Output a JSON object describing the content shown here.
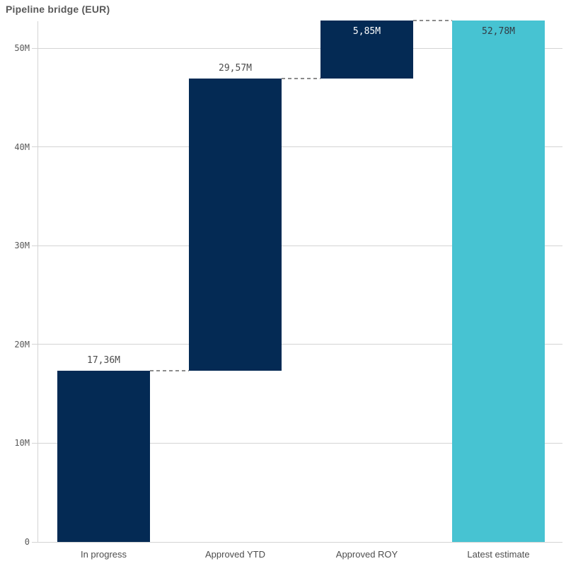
{
  "title": "Pipeline bridge (EUR)",
  "chart_data": {
    "type": "bar",
    "subtype": "waterfall",
    "title": "Pipeline bridge (EUR)",
    "grid": true,
    "legend_position": "none",
    "connector_style": "dashed",
    "categories": [
      "In progress",
      "Approved YTD",
      "Approved ROY",
      "Latest estimate"
    ],
    "bars": [
      {
        "category": "In progress",
        "start": 0,
        "end": 17.36,
        "delta": 17.36,
        "value_label": "17,36M",
        "label_position": "above",
        "color_key": "navy"
      },
      {
        "category": "Approved YTD",
        "start": 17.36,
        "end": 46.93,
        "delta": 29.57,
        "value_label": "29,57M",
        "label_position": "above",
        "color_key": "navy"
      },
      {
        "category": "Approved ROY",
        "start": 46.93,
        "end": 52.78,
        "delta": 5.85,
        "value_label": "5,85M",
        "label_position": "inside",
        "color_key": "navy",
        "label_color": "#ffffff"
      },
      {
        "category": "Latest estimate",
        "start": 0,
        "end": 52.78,
        "delta": 52.78,
        "value_label": "52,78M",
        "label_position": "inside",
        "color_key": "teal",
        "label_color": "#333b44"
      }
    ],
    "y_axis": {
      "unit": "M (EUR)",
      "range": [
        0,
        52.9
      ],
      "ticks": [
        {
          "label": "0",
          "value": 0
        },
        {
          "label": "10M",
          "value": 10
        },
        {
          "label": "20M",
          "value": 20
        },
        {
          "label": "30M",
          "value": 30
        },
        {
          "label": "40M",
          "value": 40
        },
        {
          "label": "50M",
          "value": 50
        }
      ]
    },
    "colors": {
      "navy": "#042a54",
      "teal": "#47c3d2",
      "gridline": "#d4d4d4",
      "connector": "#8c8c8c",
      "axis_text": "#595959",
      "category_text": "#4d4d4d",
      "value_text": "#4d4d4d",
      "title_text": "#595959",
      "background": "#ffffff"
    }
  }
}
